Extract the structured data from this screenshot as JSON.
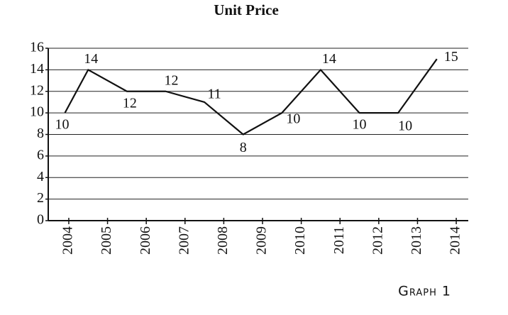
{
  "chart_data": {
    "type": "line",
    "title": "Unit Price",
    "caption": "Graph 1",
    "x": [
      2003.9,
      2004.5,
      2005.5,
      2006.5,
      2007.5,
      2008.5,
      2009.5,
      2010.5,
      2011.5,
      2012.5,
      2013.5
    ],
    "values": [
      10,
      14,
      12,
      12,
      11,
      8,
      10,
      14,
      10,
      10,
      15
    ],
    "color": "#111111",
    "xlim": [
      2003.47,
      2014.31
    ],
    "xticks": [
      2004,
      2005,
      2006,
      2007,
      2008,
      2009,
      2010,
      2011,
      2012,
      2013,
      2014
    ],
    "ylim": [
      0,
      16
    ],
    "yticks": [
      0,
      2,
      4,
      6,
      8,
      10,
      12,
      14,
      16
    ],
    "grid": true
  }
}
